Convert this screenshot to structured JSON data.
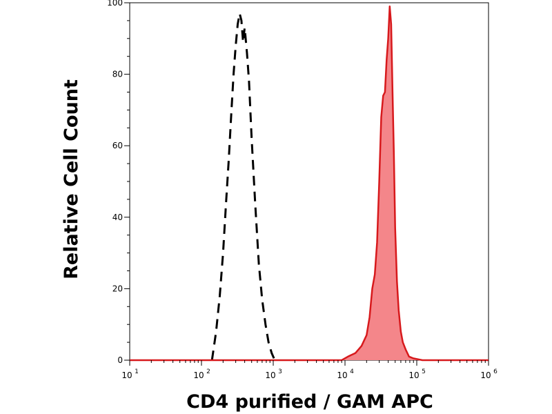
{
  "chart_data": {
    "type": "area",
    "xlabel": "CD4 purified / GAM APC",
    "ylabel": "Relative Cell Count",
    "x_scale": "log",
    "xlim": [
      10,
      1000000
    ],
    "ylim": [
      0,
      100
    ],
    "x_ticks": [
      {
        "base": "10",
        "exp": "1"
      },
      {
        "base": "10",
        "exp": "2"
      },
      {
        "base": "10",
        "exp": "3"
      },
      {
        "base": "10",
        "exp": "4"
      },
      {
        "base": "10",
        "exp": "5"
      },
      {
        "base": "10",
        "exp": "6"
      }
    ],
    "y_ticks": [
      "0",
      "20",
      "40",
      "60",
      "80",
      "100"
    ],
    "series": [
      {
        "style": "dashed",
        "color": "#000000",
        "fill": "none",
        "x": [
          140,
          160,
          180,
          200,
          220,
          240,
          260,
          280,
          300,
          320,
          340,
          360,
          380,
          400,
          430,
          460,
          500,
          560,
          630,
          700,
          780,
          860,
          950,
          1050
        ],
        "y": [
          0,
          8,
          18,
          30,
          44,
          56,
          69,
          80,
          88,
          94,
          97,
          95,
          89,
          93,
          86,
          78,
          62,
          44,
          27,
          17,
          10,
          5,
          2,
          0
        ]
      },
      {
        "style": "solid",
        "color": "#d7191c",
        "fill": "#f4868a",
        "x": [
          10,
          9000,
          11000,
          14000,
          17000,
          20000,
          22000,
          24000,
          26000,
          28000,
          30000,
          32000,
          34000,
          36000,
          38000,
          40000,
          42000,
          44000,
          46000,
          48000,
          50000,
          53000,
          56000,
          60000,
          64000,
          70000,
          78000,
          90000,
          120000,
          1000000
        ],
        "y": [
          0,
          0,
          1,
          2,
          4,
          7,
          12,
          20,
          24,
          33,
          50,
          68,
          74,
          75,
          84,
          90,
          99,
          94,
          75,
          58,
          37,
          22,
          14,
          8,
          5,
          3,
          1,
          0.5,
          0,
          0
        ]
      }
    ]
  }
}
